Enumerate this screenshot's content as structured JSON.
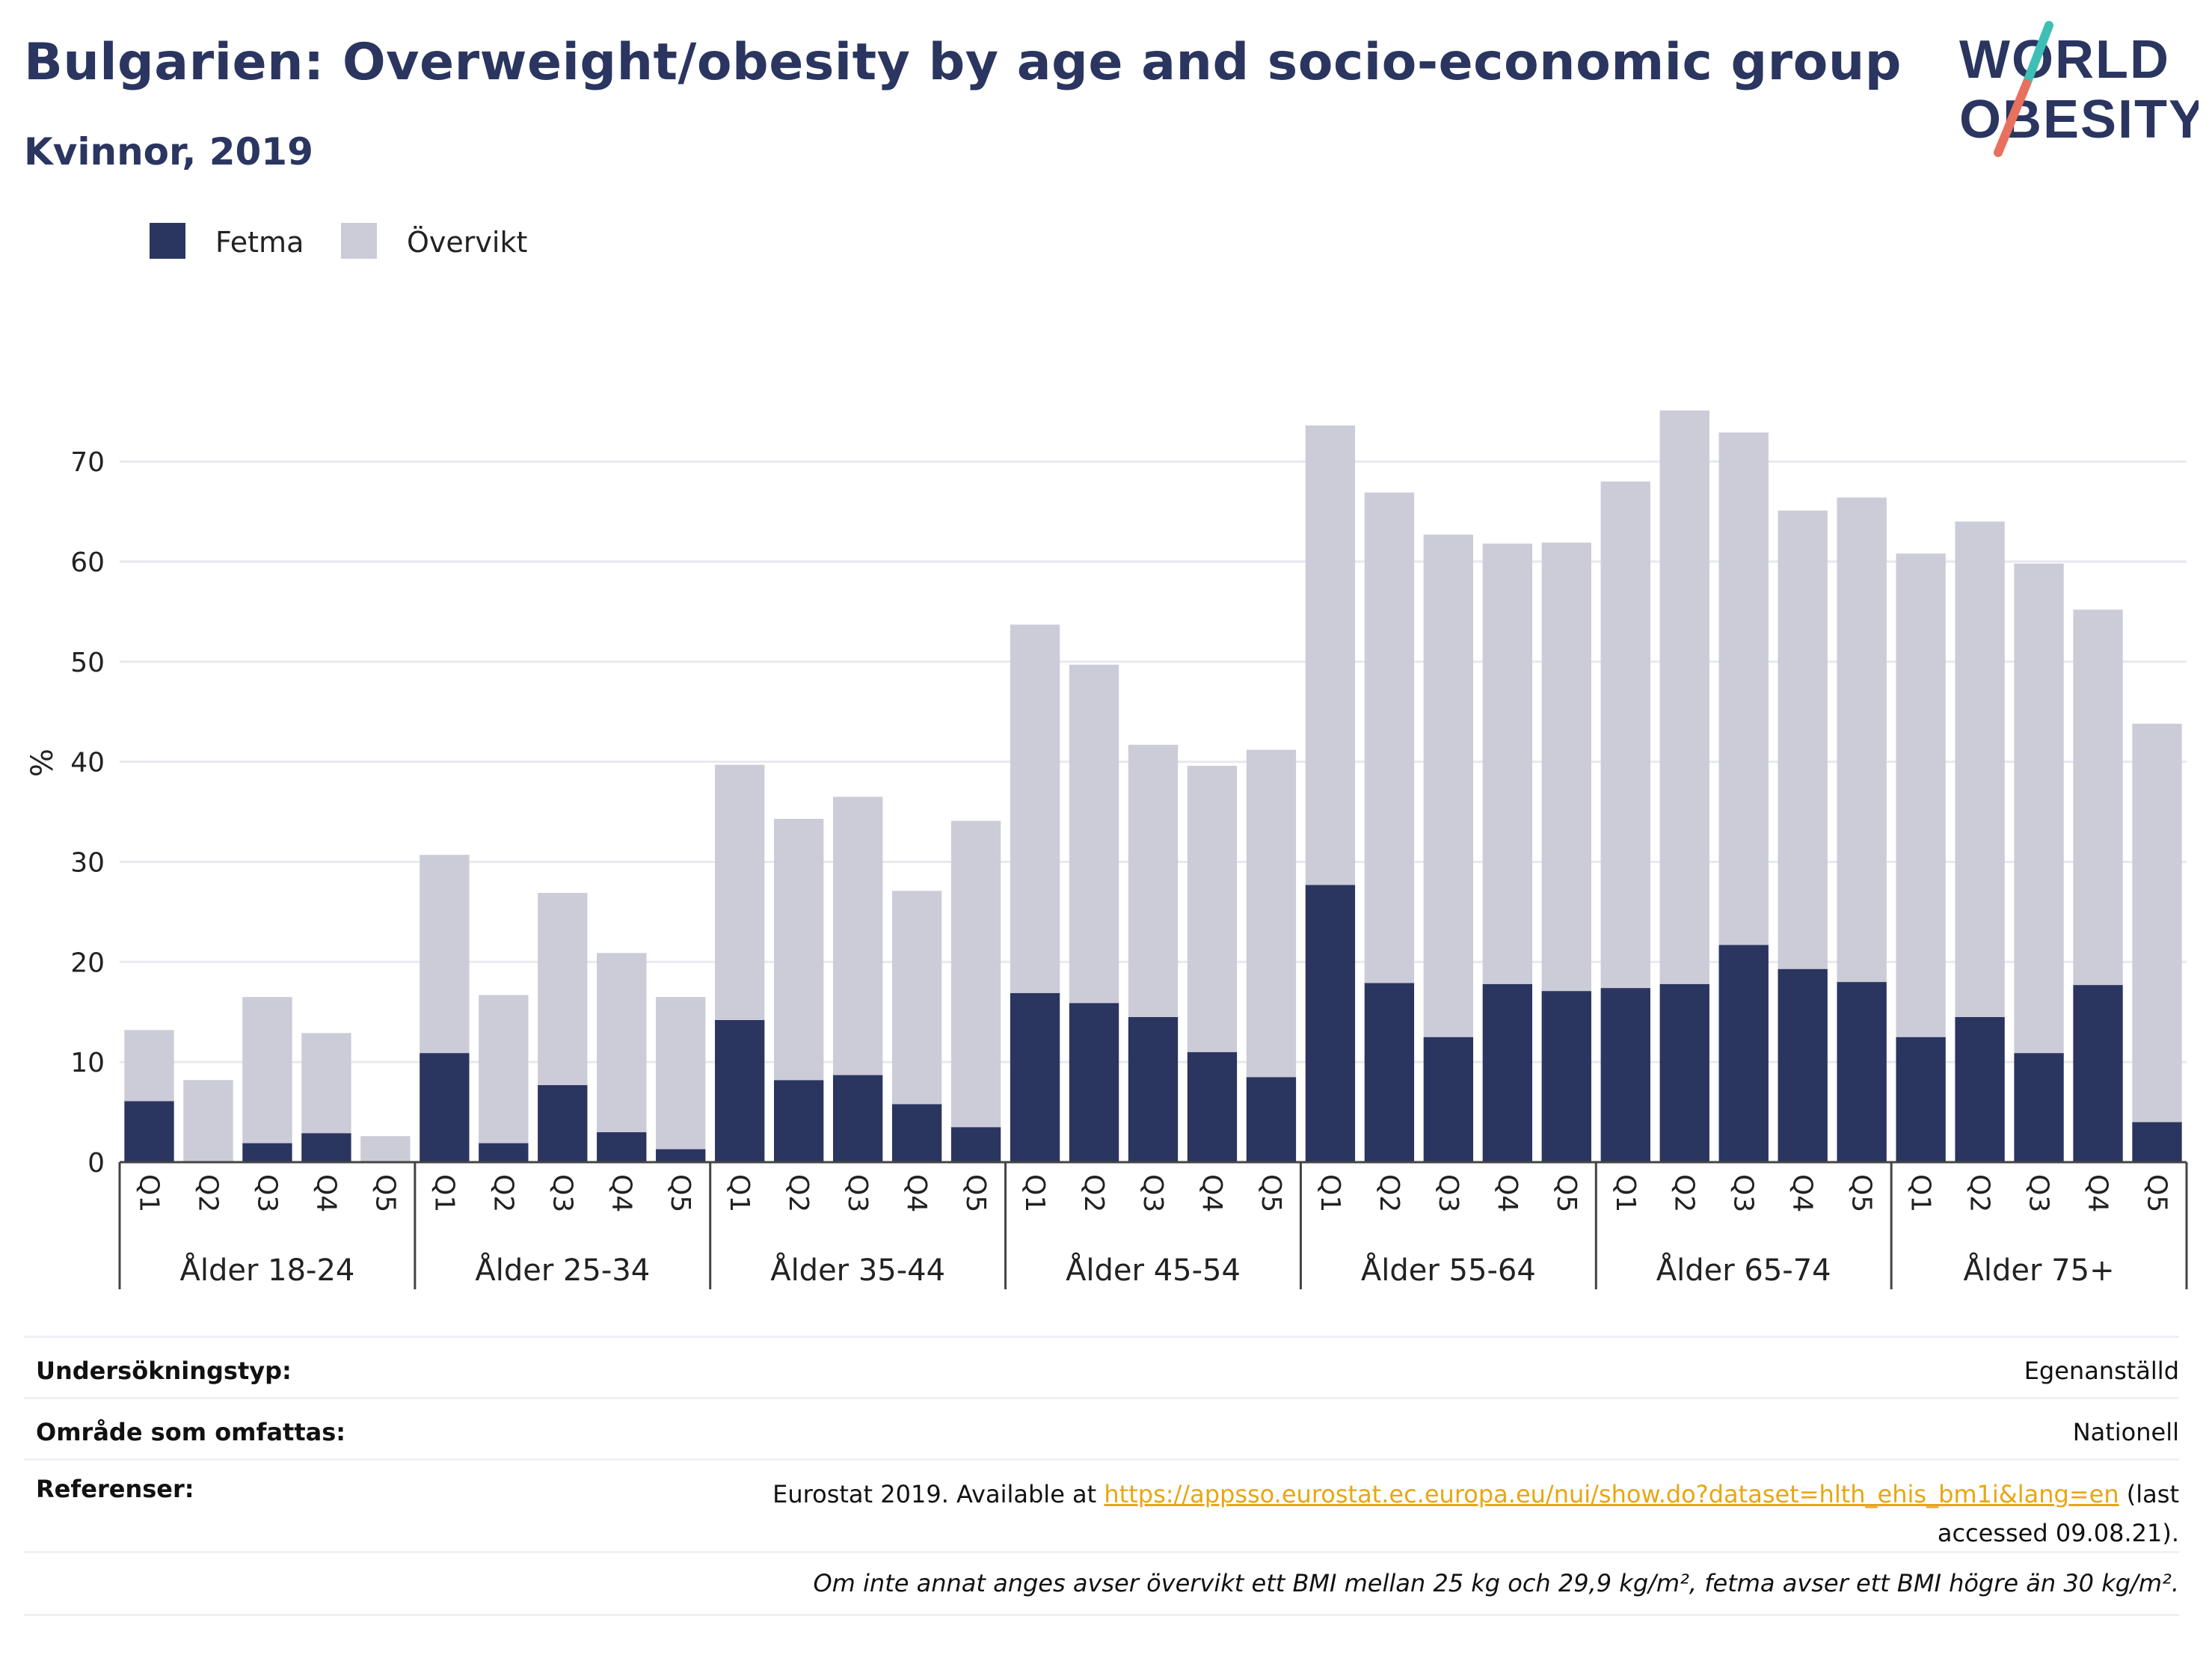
{
  "header": {
    "title": "Bulgarien: Overweight/obesity by age and socio-economic group",
    "subtitle": "Kvinnor, 2019"
  },
  "logo": {
    "line1": "WORLD",
    "line2": "OBESITY"
  },
  "colors": {
    "fetma": "#2a3560",
    "overvikt": "#cbccd8",
    "title": "#2a3560",
    "link": "#e8a612",
    "grid": "#e8e8ee",
    "logo_slash_top": "#3dbfb5",
    "logo_slash_bottom": "#e8705e"
  },
  "chart_data": {
    "type": "bar",
    "stacked": true,
    "ylabel": "%",
    "ylim": [
      0,
      78
    ],
    "yticks": [
      0,
      10,
      20,
      30,
      40,
      50,
      60,
      70
    ],
    "grid": true,
    "legend_position": "top-left",
    "quintiles": [
      "Q1",
      "Q2",
      "Q3",
      "Q4",
      "Q5"
    ],
    "groups": [
      "Ålder 18-24",
      "Ålder 25-34",
      "Ålder 35-44",
      "Ålder 45-54",
      "Ålder 55-64",
      "Ålder 65-74",
      "Ålder 75+"
    ],
    "series": [
      {
        "name": "Fetma",
        "values": [
          6.1,
          0.0,
          1.9,
          2.9,
          0.0,
          10.9,
          1.9,
          7.7,
          3.0,
          1.3,
          14.2,
          8.2,
          8.7,
          5.8,
          3.5,
          16.9,
          15.9,
          14.5,
          11.0,
          8.5,
          27.7,
          17.9,
          12.5,
          17.8,
          17.1,
          17.4,
          17.8,
          21.7,
          19.3,
          18.0,
          12.5,
          14.5,
          10.9,
          17.7,
          4.0
        ]
      },
      {
        "name": "Övervikt",
        "values": [
          7.1,
          8.2,
          14.6,
          10.0,
          2.6,
          19.8,
          14.8,
          19.2,
          17.9,
          15.2,
          25.5,
          26.1,
          27.8,
          21.3,
          30.6,
          36.8,
          33.8,
          27.2,
          28.6,
          32.7,
          45.9,
          49.0,
          50.2,
          44.0,
          44.8,
          50.6,
          57.3,
          51.2,
          45.8,
          48.4,
          48.3,
          49.5,
          48.9,
          37.5,
          39.8
        ]
      }
    ]
  },
  "references": {
    "survey_type_label": "Undersökningstyp:",
    "survey_type_value": "Egenanställd",
    "coverage_label": "Område som omfattas:",
    "coverage_value": "Nationell",
    "refs_label": "Referenser:",
    "refs_prefix": "Eurostat 2019. Available at ",
    "refs_link": "https://appsso.eurostat.ec.europa.eu/nui/show.do?dataset=hlth_ehis_bm1i&lang=en",
    "refs_suffix": " (last accessed 09.08.21).",
    "footnote": "Om inte annat anges avser övervikt ett BMI mellan 25 kg och 29,9 kg/m², fetma avser ett BMI högre än 30 kg/m²."
  }
}
